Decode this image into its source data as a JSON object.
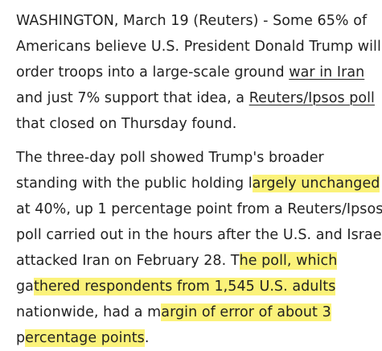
{
  "article": {
    "paragraph_1": {
      "line_1": "WASHINGTON, March 19 (Reuters) - Some 65% of",
      "line_2": "Americans believe U.S. President Donald Trump will",
      "line_3_before": "order troops into a large-scale ground ",
      "link_war_in_iran": "war in Iran",
      "line_4_before": "and just 7% support that idea, a ",
      "link_reuters_ipsos_poll": "Reuters/Ipsos poll",
      "line_5": "that closed on Thursday found."
    },
    "paragraph_2": {
      "line_1": "The three-day poll showed Trump's broader",
      "line_2_before": "standing with the public holding l",
      "line_2_highlight": "argely unchanged",
      "line_3": "at 40%, up 1 percentage point from a Reuters/Ipsos",
      "line_4": "poll carried out in the hours after the U.S. and Israel",
      "line_5_before": "attacked Iran on February 28. T",
      "line_5_highlight": "he poll, which",
      "line_6_before": "ga",
      "line_6_highlight": "thered respondents from 1,545 U.S. adults",
      "line_7_before": "nationwide, had a m",
      "line_7_highlight": "argin of error of about 3",
      "line_8_before": "p",
      "line_8_highlight": "ercentage points",
      "line_8_after": "."
    }
  },
  "colors": {
    "text": "#222222",
    "highlight": "#fbf27a",
    "background": "#ffffff"
  }
}
